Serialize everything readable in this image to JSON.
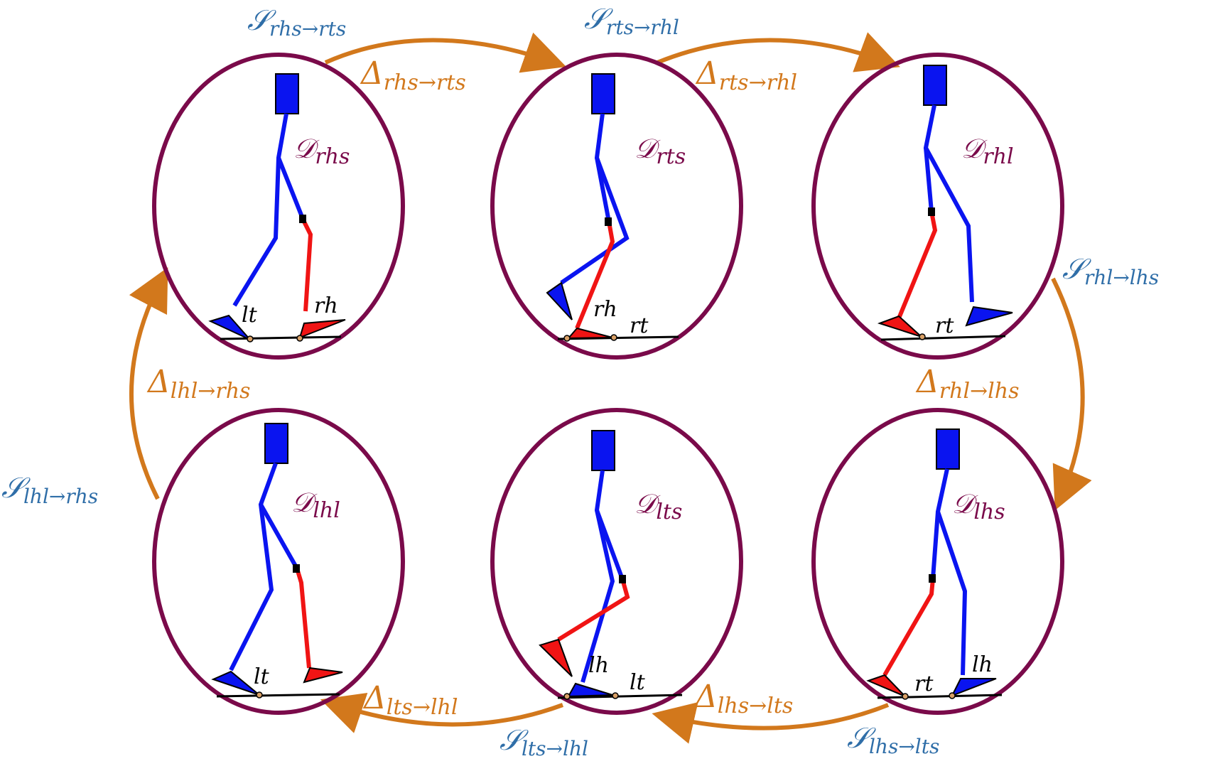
{
  "colors": {
    "domain": "#7a0a4a",
    "switch": "#2f6ea8",
    "transition": "#d2781c",
    "stance_leg": "#0a14f0",
    "swing_leg": "#f01414",
    "ground": "#000000",
    "contact_point": "#d9a066"
  },
  "domains": [
    {
      "id": "rhs",
      "label": {
        "main": "𝒟",
        "sub": "rhs"
      },
      "contacts": [
        {
          "main": "lt"
        },
        {
          "main": "rh"
        }
      ]
    },
    {
      "id": "rts",
      "label": {
        "main": "𝒟",
        "sub": "rts"
      },
      "contacts": [
        {
          "main": "rh"
        },
        {
          "main": "rt"
        }
      ]
    },
    {
      "id": "rhl",
      "label": {
        "main": "𝒟",
        "sub": "rhl"
      },
      "contacts": [
        {
          "main": "rt"
        }
      ]
    },
    {
      "id": "lhl",
      "label": {
        "main": "𝒟",
        "sub": "lhl"
      },
      "contacts": [
        {
          "main": "lt"
        }
      ]
    },
    {
      "id": "lts",
      "label": {
        "main": "𝒟",
        "sub": "lts"
      },
      "contacts": [
        {
          "main": "lh"
        },
        {
          "main": "lt"
        }
      ]
    },
    {
      "id": "lhs",
      "label": {
        "main": "𝒟",
        "sub": "lhs"
      },
      "contacts": [
        {
          "main": "lh"
        },
        {
          "main": "rt"
        }
      ]
    }
  ],
  "switching_surfaces": [
    {
      "main": "𝒮",
      "sub": "rhs→rts"
    },
    {
      "main": "𝒮",
      "sub": "rts→rhl"
    },
    {
      "main": "𝒮",
      "sub": "rhl→lhs"
    },
    {
      "main": "𝒮",
      "sub": "lhs→lts"
    },
    {
      "main": "𝒮",
      "sub": "lts→lhl"
    },
    {
      "main": "𝒮",
      "sub": "lhl→rhs"
    }
  ],
  "reset_maps": [
    {
      "main": "Δ",
      "sub": "rhs→rts"
    },
    {
      "main": "Δ",
      "sub": "rts→rhl"
    },
    {
      "main": "Δ",
      "sub": "rhl→lhs"
    },
    {
      "main": "Δ",
      "sub": "lhs→lts"
    },
    {
      "main": "Δ",
      "sub": "lts→lhl"
    },
    {
      "main": "Δ",
      "sub": "lhl→rhs"
    }
  ]
}
